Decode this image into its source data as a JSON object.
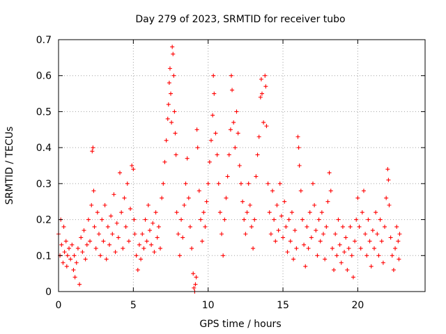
{
  "chart_data": {
    "type": "scatter",
    "title": "Day 279 of 2023, SRMTID for receiver tubo",
    "xlabel": "GPS time / hours",
    "ylabel": "SRMTID / TECUs",
    "xlim": [
      0,
      24.5
    ],
    "ylim": [
      0,
      0.7
    ],
    "xticks": [
      0,
      5,
      10,
      15,
      20
    ],
    "yticks": [
      0,
      0.1,
      0.2,
      0.3,
      0.4,
      0.5,
      0.6,
      0.7
    ],
    "xtick_labels": [
      "0",
      "5",
      "10",
      "15",
      "20"
    ],
    "ytick_labels": [
      "0",
      "0.1",
      "0.2",
      "0.3",
      "0.4",
      "0.5",
      "0.6",
      "0.7"
    ],
    "grid": true,
    "marker": "+",
    "marker_color": "#ff0000",
    "series": [
      {
        "name": "SRMTID",
        "points": [
          [
            0.0,
            0.16
          ],
          [
            0.1,
            0.1
          ],
          [
            0.15,
            0.2
          ],
          [
            0.2,
            0.13
          ],
          [
            0.3,
            0.08
          ],
          [
            0.35,
            0.18
          ],
          [
            0.4,
            0.11
          ],
          [
            0.5,
            0.14
          ],
          [
            0.55,
            0.07
          ],
          [
            0.6,
            0.1
          ],
          [
            0.7,
            0.12
          ],
          [
            0.8,
            0.09
          ],
          [
            0.9,
            0.13
          ],
          [
            1.0,
            0.06
          ],
          [
            1.05,
            0.1
          ],
          [
            1.1,
            0.04
          ],
          [
            1.2,
            0.08
          ],
          [
            1.3,
            0.12
          ],
          [
            1.4,
            0.02
          ],
          [
            1.5,
            0.15
          ],
          [
            1.6,
            0.11
          ],
          [
            1.7,
            0.17
          ],
          [
            1.8,
            0.09
          ],
          [
            1.9,
            0.13
          ],
          [
            2.0,
            0.2
          ],
          [
            2.1,
            0.14
          ],
          [
            2.2,
            0.24
          ],
          [
            2.25,
            0.39
          ],
          [
            2.3,
            0.4
          ],
          [
            2.35,
            0.28
          ],
          [
            2.4,
            0.18
          ],
          [
            2.5,
            0.12
          ],
          [
            2.6,
            0.22
          ],
          [
            2.7,
            0.16
          ],
          [
            2.8,
            0.1
          ],
          [
            2.9,
            0.2
          ],
          [
            3.0,
            0.14
          ],
          [
            3.1,
            0.24
          ],
          [
            3.2,
            0.09
          ],
          [
            3.3,
            0.18
          ],
          [
            3.4,
            0.13
          ],
          [
            3.5,
            0.21
          ],
          [
            3.6,
            0.16
          ],
          [
            3.7,
            0.27
          ],
          [
            3.8,
            0.11
          ],
          [
            3.9,
            0.19
          ],
          [
            4.0,
            0.15
          ],
          [
            4.1,
            0.33
          ],
          [
            4.2,
            0.22
          ],
          [
            4.3,
            0.12
          ],
          [
            4.4,
            0.26
          ],
          [
            4.5,
            0.18
          ],
          [
            4.6,
            0.3
          ],
          [
            4.7,
            0.14
          ],
          [
            4.8,
            0.23
          ],
          [
            4.9,
            0.35
          ],
          [
            5.0,
            0.34
          ],
          [
            5.05,
            0.2
          ],
          [
            5.1,
            0.16
          ],
          [
            5.2,
            0.1
          ],
          [
            5.3,
            0.06
          ],
          [
            5.4,
            0.13
          ],
          [
            5.5,
            0.09
          ],
          [
            5.6,
            0.16
          ],
          [
            5.7,
            0.12
          ],
          [
            5.8,
            0.2
          ],
          [
            5.9,
            0.14
          ],
          [
            6.0,
            0.24
          ],
          [
            6.1,
            0.17
          ],
          [
            6.2,
            0.13
          ],
          [
            6.3,
            0.19
          ],
          [
            6.4,
            0.11
          ],
          [
            6.5,
            0.22
          ],
          [
            6.6,
            0.15
          ],
          [
            6.7,
            0.18
          ],
          [
            6.8,
            0.12
          ],
          [
            6.9,
            0.26
          ],
          [
            7.0,
            0.3
          ],
          [
            7.1,
            0.36
          ],
          [
            7.2,
            0.42
          ],
          [
            7.3,
            0.48
          ],
          [
            7.35,
            0.52
          ],
          [
            7.4,
            0.58
          ],
          [
            7.45,
            0.62
          ],
          [
            7.5,
            0.55
          ],
          [
            7.55,
            0.47
          ],
          [
            7.6,
            0.68
          ],
          [
            7.65,
            0.66
          ],
          [
            7.7,
            0.6
          ],
          [
            7.75,
            0.5
          ],
          [
            7.8,
            0.44
          ],
          [
            7.85,
            0.38
          ],
          [
            7.9,
            0.22
          ],
          [
            8.0,
            0.16
          ],
          [
            8.1,
            0.1
          ],
          [
            8.2,
            0.2
          ],
          [
            8.3,
            0.15
          ],
          [
            8.4,
            0.24
          ],
          [
            8.5,
            0.3
          ],
          [
            8.6,
            0.37
          ],
          [
            8.7,
            0.26
          ],
          [
            8.8,
            0.18
          ],
          [
            8.9,
            0.12
          ],
          [
            9.0,
            0.05
          ],
          [
            9.05,
            0.01
          ],
          [
            9.1,
            0.0
          ],
          [
            9.15,
            0.02
          ],
          [
            9.2,
            0.04
          ],
          [
            9.25,
            0.45
          ],
          [
            9.3,
            0.4
          ],
          [
            9.4,
            0.28
          ],
          [
            9.5,
            0.2
          ],
          [
            9.6,
            0.14
          ],
          [
            9.7,
            0.22
          ],
          [
            9.8,
            0.18
          ],
          [
            9.9,
            0.25
          ],
          [
            10.0,
            0.3
          ],
          [
            10.1,
            0.36
          ],
          [
            10.2,
            0.42
          ],
          [
            10.3,
            0.49
          ],
          [
            10.35,
            0.6
          ],
          [
            10.4,
            0.55
          ],
          [
            10.5,
            0.44
          ],
          [
            10.6,
            0.38
          ],
          [
            10.7,
            0.3
          ],
          [
            10.8,
            0.22
          ],
          [
            10.9,
            0.16
          ],
          [
            11.0,
            0.1
          ],
          [
            11.1,
            0.2
          ],
          [
            11.2,
            0.26
          ],
          [
            11.3,
            0.32
          ],
          [
            11.4,
            0.38
          ],
          [
            11.5,
            0.45
          ],
          [
            11.55,
            0.6
          ],
          [
            11.6,
            0.56
          ],
          [
            11.7,
            0.47
          ],
          [
            11.8,
            0.4
          ],
          [
            11.9,
            0.5
          ],
          [
            12.0,
            0.44
          ],
          [
            12.1,
            0.35
          ],
          [
            12.2,
            0.3
          ],
          [
            12.3,
            0.25
          ],
          [
            12.4,
            0.2
          ],
          [
            12.5,
            0.16
          ],
          [
            12.6,
            0.22
          ],
          [
            12.7,
            0.3
          ],
          [
            12.8,
            0.24
          ],
          [
            12.9,
            0.18
          ],
          [
            13.0,
            0.12
          ],
          [
            13.1,
            0.2
          ],
          [
            13.2,
            0.32
          ],
          [
            13.3,
            0.38
          ],
          [
            13.4,
            0.43
          ],
          [
            13.5,
            0.54
          ],
          [
            13.55,
            0.59
          ],
          [
            13.6,
            0.55
          ],
          [
            13.7,
            0.47
          ],
          [
            13.8,
            0.6
          ],
          [
            13.85,
            0.57
          ],
          [
            13.9,
            0.46
          ],
          [
            14.0,
            0.3
          ],
          [
            14.1,
            0.22
          ],
          [
            14.2,
            0.16
          ],
          [
            14.3,
            0.28
          ],
          [
            14.4,
            0.2
          ],
          [
            14.5,
            0.14
          ],
          [
            14.6,
            0.24
          ],
          [
            14.7,
            0.17
          ],
          [
            14.8,
            0.3
          ],
          [
            14.9,
            0.21
          ],
          [
            15.0,
            0.15
          ],
          [
            15.1,
            0.25
          ],
          [
            15.2,
            0.18
          ],
          [
            15.3,
            0.11
          ],
          [
            15.4,
            0.2
          ],
          [
            15.5,
            0.14
          ],
          [
            15.6,
            0.22
          ],
          [
            15.7,
            0.09
          ],
          [
            15.8,
            0.17
          ],
          [
            15.9,
            0.12
          ],
          [
            16.0,
            0.43
          ],
          [
            16.05,
            0.4
          ],
          [
            16.1,
            0.35
          ],
          [
            16.2,
            0.28
          ],
          [
            16.3,
            0.2
          ],
          [
            16.4,
            0.13
          ],
          [
            16.5,
            0.07
          ],
          [
            16.6,
            0.18
          ],
          [
            16.7,
            0.12
          ],
          [
            16.8,
            0.22
          ],
          [
            16.9,
            0.15
          ],
          [
            17.0,
            0.3
          ],
          [
            17.1,
            0.24
          ],
          [
            17.2,
            0.17
          ],
          [
            17.3,
            0.1
          ],
          [
            17.4,
            0.2
          ],
          [
            17.5,
            0.14
          ],
          [
            17.6,
            0.22
          ],
          [
            17.7,
            0.16
          ],
          [
            17.8,
            0.09
          ],
          [
            17.9,
            0.18
          ],
          [
            18.0,
            0.25
          ],
          [
            18.1,
            0.33
          ],
          [
            18.2,
            0.28
          ],
          [
            18.3,
            0.12
          ],
          [
            18.4,
            0.06
          ],
          [
            18.5,
            0.16
          ],
          [
            18.6,
            0.1
          ],
          [
            18.7,
            0.2
          ],
          [
            18.8,
            0.13
          ],
          [
            18.9,
            0.08
          ],
          [
            19.0,
            0.18
          ],
          [
            19.1,
            0.11
          ],
          [
            19.2,
            0.15
          ],
          [
            19.3,
            0.06
          ],
          [
            19.4,
            0.12
          ],
          [
            19.5,
            0.18
          ],
          [
            19.6,
            0.1
          ],
          [
            19.7,
            0.04
          ],
          [
            19.8,
            0.14
          ],
          [
            19.9,
            0.2
          ],
          [
            20.0,
            0.26
          ],
          [
            20.1,
            0.18
          ],
          [
            20.2,
            0.12
          ],
          [
            20.3,
            0.22
          ],
          [
            20.4,
            0.28
          ],
          [
            20.5,
            0.16
          ],
          [
            20.6,
            0.1
          ],
          [
            20.7,
            0.2
          ],
          [
            20.8,
            0.14
          ],
          [
            20.9,
            0.07
          ],
          [
            21.0,
            0.17
          ],
          [
            21.1,
            0.12
          ],
          [
            21.2,
            0.22
          ],
          [
            21.3,
            0.16
          ],
          [
            21.4,
            0.1
          ],
          [
            21.5,
            0.2
          ],
          [
            21.6,
            0.14
          ],
          [
            21.7,
            0.08
          ],
          [
            21.8,
            0.18
          ],
          [
            21.9,
            0.26
          ],
          [
            22.0,
            0.34
          ],
          [
            22.05,
            0.31
          ],
          [
            22.1,
            0.24
          ],
          [
            22.2,
            0.15
          ],
          [
            22.3,
            0.1
          ],
          [
            22.4,
            0.06
          ],
          [
            22.5,
            0.12
          ],
          [
            22.6,
            0.18
          ],
          [
            22.7,
            0.14
          ],
          [
            22.75,
            0.09
          ],
          [
            22.8,
            0.16
          ]
        ]
      }
    ]
  }
}
